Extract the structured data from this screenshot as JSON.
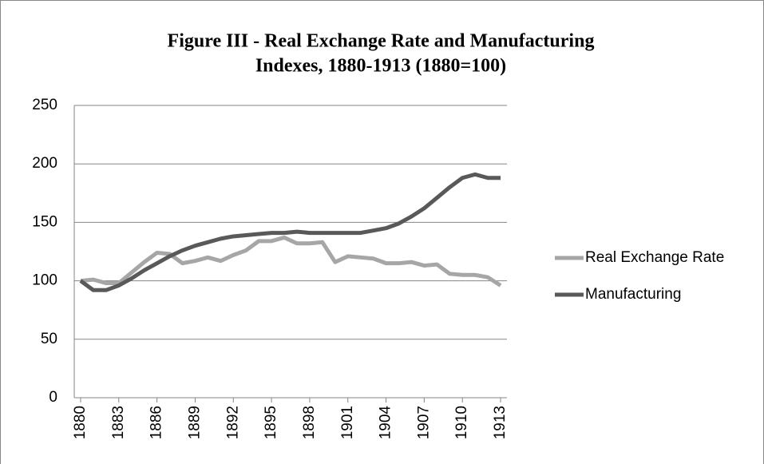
{
  "chart_data": {
    "type": "line",
    "title": [
      "Figure III - Real Exchange Rate and Manufacturing",
      "Indexes, 1880-1913 (1880=100)"
    ],
    "x": [
      1880,
      1881,
      1882,
      1883,
      1884,
      1885,
      1886,
      1887,
      1888,
      1889,
      1890,
      1891,
      1892,
      1893,
      1894,
      1895,
      1896,
      1897,
      1898,
      1899,
      1900,
      1901,
      1902,
      1903,
      1904,
      1905,
      1906,
      1907,
      1908,
      1909,
      1910,
      1911,
      1912,
      1913
    ],
    "series": [
      {
        "name": "Real Exchange Rate",
        "color": "#a6a6a6",
        "values": [
          100,
          101,
          98,
          98,
          107,
          116,
          124,
          123,
          115,
          117,
          120,
          117,
          122,
          126,
          134,
          134,
          137,
          132,
          132,
          133,
          116,
          121,
          120,
          119,
          115,
          115,
          116,
          113,
          114,
          106,
          105,
          105,
          103,
          96
        ]
      },
      {
        "name": "Manufacturing",
        "color": "#595959",
        "values": [
          100,
          92,
          92,
          96,
          102,
          109,
          115,
          121,
          126,
          130,
          133,
          136,
          138,
          139,
          140,
          141,
          141,
          142,
          141,
          141,
          141,
          141,
          141,
          143,
          145,
          149,
          155,
          162,
          171,
          180,
          188,
          191,
          188,
          188
        ]
      }
    ],
    "xlim": [
      1879.5,
      1913.5
    ],
    "xticks": [
      1880,
      1883,
      1886,
      1889,
      1892,
      1895,
      1898,
      1901,
      1904,
      1907,
      1910,
      1913
    ],
    "ylim": [
      0,
      250
    ],
    "yticks": [
      0,
      50,
      100,
      150,
      200,
      250
    ],
    "grid": true,
    "legend": "right"
  }
}
